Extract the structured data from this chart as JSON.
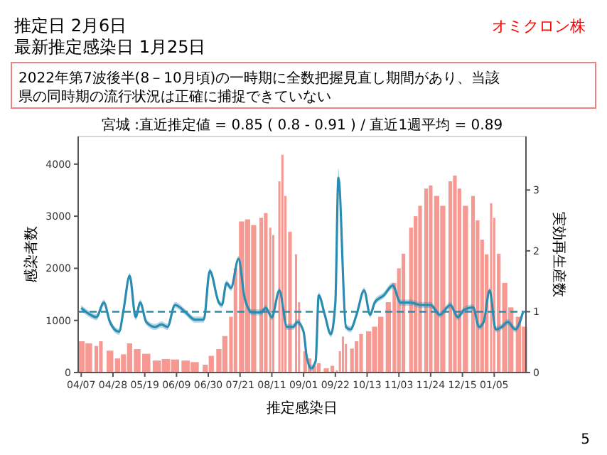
{
  "chart_data": {
    "type": "bar",
    "title": "推定日  2月6日",
    "subtitle": "最新推定感染日  1月25日",
    "annotations": [
      "オミクロン株",
      "2022年第7波後半(8－10月頃)の一時期に全数把握見直し期間があり、当該県の同時期の流行状況は正確に捕捉できていない",
      "宮城 :直近推定値 = 0.85 ( 0.8 - 0.91 ) / 直近1週平均 = 0.89",
      "5"
    ],
    "xlabel": "推定感染日",
    "ylabel": "感染者数",
    "y2label": "実効再生産数",
    "xlim": [
      "2022-04-05",
      "2023-01-26"
    ],
    "xticks": [
      {
        "value": "2022-04-07",
        "label": "04/07"
      },
      {
        "value": "2022-04-28",
        "label": "04/28"
      },
      {
        "value": "2022-05-19",
        "label": "05/19"
      },
      {
        "value": "2022-06-09",
        "label": "06/09"
      },
      {
        "value": "2022-06-30",
        "label": "06/30"
      },
      {
        "value": "2022-07-21",
        "label": "07/21"
      },
      {
        "value": "2022-08-11",
        "label": "08/11"
      },
      {
        "value": "2022-09-01",
        "label": "09/01"
      },
      {
        "value": "2022-09-22",
        "label": "09/22"
      },
      {
        "value": "2022-10-13",
        "label": "10/13"
      },
      {
        "value": "2022-11-03",
        "label": "11/03"
      },
      {
        "value": "2022-11-24",
        "label": "11/24"
      },
      {
        "value": "2022-12-15",
        "label": "12/15"
      },
      {
        "value": "2023-01-05",
        "label": "01/05"
      }
    ],
    "ylim": [
      0,
      4530
    ],
    "yticks": [
      0,
      1000,
      2000,
      3000,
      4000
    ],
    "y2lim": [
      0,
      3.88
    ],
    "y2ticks": [
      0,
      1,
      2,
      3
    ],
    "ref_lines": [
      {
        "axis": "y2",
        "value": 1,
        "color": "#2a8cb0",
        "line_style": "dashed"
      }
    ],
    "grid": false,
    "series": [
      {
        "color": "#f4877f",
        "x": [
          "2022-04-07",
          "2022-04-12",
          "2022-04-17",
          "2022-04-20",
          "2022-04-26",
          "2022-05-01",
          "2022-05-05",
          "2022-05-09",
          "2022-05-14",
          "2022-05-20",
          "2022-05-27",
          "2022-06-02",
          "2022-06-08",
          "2022-06-15",
          "2022-06-21",
          "2022-06-28",
          "2022-07-02",
          "2022-07-07",
          "2022-07-11",
          "2022-07-15",
          "2022-07-18",
          "2022-07-22",
          "2022-07-26",
          "2022-07-30",
          "2022-08-04",
          "2022-08-07",
          "2022-08-10",
          "2022-08-12",
          "2022-08-16",
          "2022-08-18",
          "2022-08-20",
          "2022-08-23",
          "2022-08-27",
          "2022-08-29",
          "2022-09-02",
          "2022-09-05",
          "2022-09-08",
          "2022-09-11",
          "2022-09-16",
          "2022-09-20",
          "2022-09-23",
          "2022-09-25",
          "2022-09-27",
          "2022-09-29",
          "2022-10-03",
          "2022-10-06",
          "2022-10-09",
          "2022-10-14",
          "2022-10-18",
          "2022-10-22",
          "2022-10-27",
          "2022-10-31",
          "2022-11-03",
          "2022-11-06",
          "2022-11-11",
          "2022-11-14",
          "2022-11-17",
          "2022-11-21",
          "2022-11-24",
          "2022-11-28",
          "2022-12-02",
          "2022-12-07",
          "2022-12-10",
          "2022-12-13",
          "2022-12-17",
          "2022-12-22",
          "2022-12-25",
          "2022-12-28",
          "2022-12-31",
          "2023-01-03",
          "2023-01-05",
          "2023-01-08",
          "2023-01-12",
          "2023-01-16",
          "2023-01-21",
          "2023-01-25"
        ],
        "values": [
          600,
          560,
          510,
          600,
          420,
          270,
          350,
          560,
          450,
          360,
          230,
          260,
          250,
          230,
          200,
          150,
          320,
          450,
          700,
          1070,
          2000,
          2900,
          2940,
          2830,
          2970,
          3060,
          2780,
          2640,
          3670,
          4180,
          3390,
          2700,
          2270,
          1350,
          410,
          270,
          130,
          180,
          80,
          130,
          40,
          410,
          690,
          550,
          460,
          600,
          740,
          790,
          880,
          1070,
          1350,
          1720,
          2000,
          2280,
          2780,
          3000,
          3200,
          3530,
          3590,
          3390,
          3200,
          3670,
          3780,
          3530,
          3200,
          3390,
          2920,
          2550,
          2270,
          3250,
          2970,
          2280,
          1720,
          1250,
          1070,
          880
        ]
      },
      {
        "type": "line",
        "axis": "y2",
        "color": "#2a8cb0",
        "x": [
          "2022-04-07",
          "2022-04-13",
          "2022-04-17",
          "2022-04-22",
          "2022-04-26",
          "2022-05-02",
          "2022-05-05",
          "2022-05-09",
          "2022-05-13",
          "2022-05-16",
          "2022-05-20",
          "2022-05-26",
          "2022-05-30",
          "2022-06-03",
          "2022-06-08",
          "2022-06-15",
          "2022-06-21",
          "2022-06-27",
          "2022-07-01",
          "2022-07-07",
          "2022-07-09",
          "2022-07-12",
          "2022-07-15",
          "2022-07-20",
          "2022-07-24",
          "2022-07-29",
          "2022-08-04",
          "2022-08-07",
          "2022-08-11",
          "2022-08-16",
          "2022-08-21",
          "2022-08-25",
          "2022-08-28",
          "2022-09-01",
          "2022-09-03",
          "2022-09-06",
          "2022-09-09",
          "2022-09-11",
          "2022-09-15",
          "2022-09-19",
          "2022-09-22",
          "2022-09-24",
          "2022-09-29",
          "2022-10-02",
          "2022-10-06",
          "2022-10-11",
          "2022-10-15",
          "2022-10-18",
          "2022-10-24",
          "2022-10-30",
          "2022-11-04",
          "2022-11-11",
          "2022-11-17",
          "2022-11-24",
          "2022-11-30",
          "2022-12-07",
          "2022-12-12",
          "2022-12-16",
          "2022-12-22",
          "2022-12-26",
          "2022-12-29",
          "2023-01-02",
          "2023-01-06",
          "2023-01-10",
          "2023-01-14",
          "2023-01-19",
          "2023-01-24"
        ],
        "values": [
          1.06,
          0.95,
          0.91,
          1.15,
          0.83,
          0.67,
          1.03,
          1.59,
          0.91,
          1.15,
          0.83,
          0.75,
          0.79,
          0.75,
          1.11,
          0.99,
          0.87,
          0.87,
          1.67,
          1.15,
          1.11,
          1.47,
          1.39,
          1.87,
          1.23,
          0.99,
          0.99,
          1.06,
          0.91,
          1.35,
          0.75,
          0.75,
          0.83,
          0.67,
          0.27,
          0.07,
          0.19,
          1.27,
          0.95,
          0.63,
          1.15,
          3.2,
          0.75,
          0.71,
          0.95,
          1.35,
          0.95,
          1.15,
          1.27,
          1.43,
          1.15,
          1.15,
          1.11,
          1.11,
          0.95,
          1.11,
          0.91,
          1.03,
          1.07,
          0.75,
          0.83,
          1.35,
          0.71,
          0.75,
          0.83,
          0.71,
          0.99
        ],
        "lower": [
          1.01,
          0.9,
          0.86,
          1.1,
          0.78,
          0.62,
          0.98,
          1.54,
          0.86,
          1.1,
          0.78,
          0.7,
          0.74,
          0.7,
          1.06,
          0.94,
          0.82,
          0.82,
          1.62,
          1.1,
          1.06,
          1.42,
          1.34,
          1.82,
          1.18,
          0.94,
          0.94,
          1.01,
          0.86,
          1.3,
          0.7,
          0.7,
          0.78,
          0.62,
          0.22,
          0.02,
          0.14,
          1.22,
          0.9,
          0.58,
          1.1,
          3.05,
          0.7,
          0.66,
          0.9,
          1.3,
          0.9,
          1.1,
          1.22,
          1.38,
          1.1,
          1.1,
          1.06,
          1.06,
          0.9,
          1.06,
          0.86,
          0.98,
          1.02,
          0.7,
          0.78,
          1.3,
          0.66,
          0.7,
          0.78,
          0.66,
          0.94
        ],
        "upper": [
          1.11,
          1.0,
          0.96,
          1.2,
          0.88,
          0.72,
          1.08,
          1.64,
          0.96,
          1.2,
          0.88,
          0.8,
          0.84,
          0.8,
          1.16,
          1.04,
          0.92,
          0.92,
          1.72,
          1.2,
          1.16,
          1.52,
          1.44,
          1.92,
          1.28,
          1.04,
          1.04,
          1.11,
          0.96,
          1.4,
          0.8,
          0.8,
          0.88,
          0.72,
          0.32,
          0.12,
          0.24,
          1.32,
          1.0,
          0.68,
          1.2,
          3.35,
          0.8,
          0.76,
          1.0,
          1.4,
          1.0,
          1.2,
          1.32,
          1.48,
          1.2,
          1.2,
          1.16,
          1.16,
          1.0,
          1.16,
          0.96,
          1.08,
          1.12,
          0.8,
          0.88,
          1.4,
          0.76,
          0.8,
          0.88,
          0.76,
          1.04
        ]
      }
    ]
  }
}
